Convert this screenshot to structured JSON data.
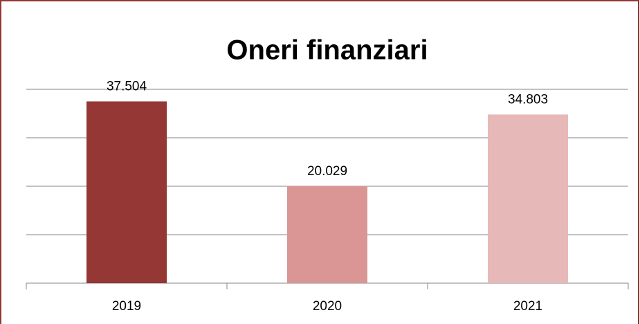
{
  "chart_data": {
    "type": "bar",
    "title": "Oneri finanziari",
    "categories": [
      "2019",
      "2020",
      "2021"
    ],
    "values": [
      37504,
      20029,
      34803
    ],
    "value_labels": [
      "37.504",
      "20.029",
      "34.803"
    ],
    "colors": [
      "#953735",
      "#d99694",
      "#e6b9b8"
    ],
    "ylim": [
      0,
      40000
    ],
    "yticks": [
      0,
      10000,
      20000,
      30000,
      40000
    ],
    "grid": true
  }
}
